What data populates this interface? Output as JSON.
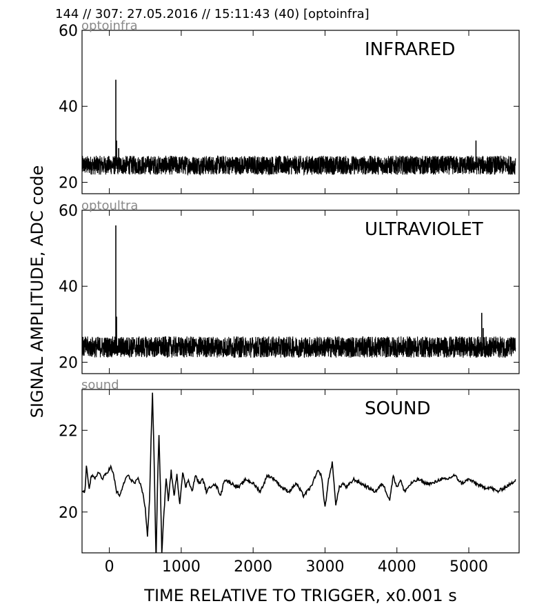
{
  "header": {
    "text": "144 // 307:   27.05.2016 // 15:11:43 (40)  [optoinfra]"
  },
  "axes": {
    "xlabel": "TIME RELATIVE TO TRIGGER,   x0.001 s",
    "ylabel": "SIGNAL AMPLITUDE,  ADC code"
  },
  "colors": {
    "line": "#000000",
    "frame": "#000000",
    "tag": "#8a8a8a",
    "background": "#ffffff"
  },
  "chart_data": [
    {
      "type": "line",
      "tag": "optoinfra",
      "label": "INFRARED",
      "xlim": [
        -380,
        5700
      ],
      "ylim": [
        17,
        60
      ],
      "yticks": [
        20,
        40,
        60
      ],
      "xticks": [
        0,
        1000,
        2000,
        3000,
        4000,
        5000
      ],
      "show_xtick_labels": false,
      "noise": {
        "center": 24.5,
        "half_range": 2.5,
        "x_start": -380,
        "x_end": 5650
      },
      "features": [
        {
          "x": 90,
          "y": 47
        },
        {
          "x": 100,
          "y": 31
        },
        {
          "x": 130,
          "y": 29
        },
        {
          "x": 5100,
          "y": 31
        }
      ]
    },
    {
      "type": "line",
      "tag": "optoultra",
      "label": "ULTRAVIOLET",
      "xlim": [
        -380,
        5700
      ],
      "ylim": [
        17,
        60
      ],
      "yticks": [
        20,
        40,
        60
      ],
      "xticks": [
        0,
        1000,
        2000,
        3000,
        4000,
        5000
      ],
      "show_xtick_labels": false,
      "noise": {
        "center": 24,
        "half_range": 2.8,
        "x_start": -380,
        "x_end": 5650
      },
      "features": [
        {
          "x": 90,
          "y": 56
        },
        {
          "x": 100,
          "y": 32
        },
        {
          "x": 5180,
          "y": 33
        },
        {
          "x": 5200,
          "y": 29
        }
      ]
    },
    {
      "type": "line",
      "tag": "sound",
      "label": "SOUND",
      "xlim": [
        -380,
        5700
      ],
      "ylim": [
        19,
        23
      ],
      "yticks": [
        20,
        22
      ],
      "xticks": [
        0,
        1000,
        2000,
        3000,
        4000,
        5000
      ],
      "xtick_labels": [
        "0",
        "1000",
        "2000",
        "3000",
        "4000",
        "5000"
      ],
      "show_xtick_labels": true,
      "x": [
        -380,
        -340,
        -320,
        -280,
        -250,
        -200,
        -150,
        -100,
        -60,
        -20,
        20,
        60,
        100,
        150,
        200,
        250,
        300,
        350,
        400,
        450,
        500,
        530,
        560,
        580,
        600,
        620,
        650,
        670,
        690,
        710,
        730,
        760,
        790,
        820,
        860,
        900,
        940,
        980,
        1020,
        1060,
        1100,
        1150,
        1200,
        1250,
        1300,
        1350,
        1400,
        1450,
        1500,
        1550,
        1600,
        1700,
        1800,
        1900,
        2000,
        2100,
        2200,
        2300,
        2400,
        2500,
        2600,
        2700,
        2800,
        2900,
        2950,
        3000,
        3050,
        3100,
        3150,
        3200,
        3250,
        3300,
        3400,
        3500,
        3600,
        3700,
        3800,
        3900,
        3950,
        4000,
        4050,
        4100,
        4200,
        4300,
        4400,
        4500,
        4600,
        4700,
        4800,
        4900,
        5000,
        5100,
        5200,
        5300,
        5400,
        5500,
        5600,
        5650
      ],
      "y": [
        20.5,
        20.5,
        21.1,
        20.6,
        20.9,
        20.8,
        21.0,
        20.8,
        20.9,
        21.0,
        21.1,
        20.9,
        20.5,
        20.4,
        20.7,
        20.9,
        20.8,
        20.7,
        20.8,
        20.6,
        20.1,
        19.4,
        20.3,
        21.8,
        22.9,
        21.5,
        18.8,
        20.7,
        21.9,
        20.6,
        19.0,
        20.0,
        20.8,
        20.3,
        21.0,
        20.4,
        20.9,
        20.2,
        21.0,
        20.6,
        20.8,
        20.5,
        20.9,
        20.7,
        20.8,
        20.5,
        20.6,
        20.7,
        20.6,
        20.4,
        20.8,
        20.7,
        20.6,
        20.8,
        20.7,
        20.5,
        20.9,
        20.8,
        20.6,
        20.5,
        20.7,
        20.4,
        20.6,
        21.0,
        20.9,
        20.1,
        20.8,
        21.2,
        20.2,
        20.6,
        20.7,
        20.6,
        20.8,
        20.7,
        20.6,
        20.5,
        20.7,
        20.3,
        20.9,
        20.6,
        20.8,
        20.5,
        20.7,
        20.8,
        20.7,
        20.7,
        20.8,
        20.8,
        20.9,
        20.7,
        20.8,
        20.7,
        20.6,
        20.6,
        20.5,
        20.6,
        20.7,
        20.8
      ]
    }
  ]
}
